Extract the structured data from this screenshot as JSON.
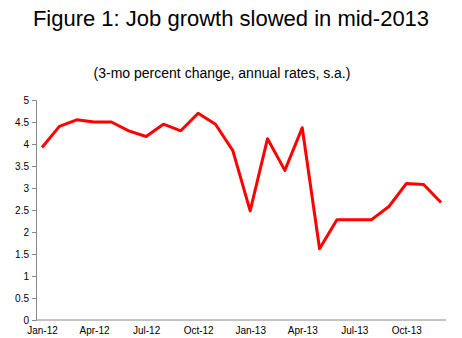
{
  "chart_data": {
    "type": "line",
    "title": "Figure 1: Job growth slowed in mid-2013",
    "subtitle": "(3-mo percent change, annual rates, s.a.)",
    "categories": [
      "Jan-12",
      null,
      null,
      "Apr-12",
      null,
      null,
      "Jul-12",
      null,
      null,
      "Oct-12",
      null,
      null,
      "Jan-13",
      null,
      null,
      "Apr-13",
      null,
      null,
      "Jul-13",
      null,
      null,
      "Oct-13",
      null,
      null
    ],
    "series": [
      {
        "name": "Job growth",
        "color": "#ff0000",
        "values": [
          3.92,
          4.4,
          4.55,
          4.5,
          4.5,
          4.3,
          4.17,
          4.45,
          4.3,
          4.7,
          4.45,
          3.85,
          2.48,
          4.12,
          3.4,
          4.37,
          1.62,
          2.28,
          2.28,
          2.28,
          2.58,
          3.1,
          3.08,
          2.67
        ]
      }
    ],
    "ylim": [
      0,
      5
    ],
    "yticks": [
      0,
      0.5,
      1,
      1.5,
      2,
      2.5,
      3,
      3.5,
      4,
      4.5,
      5
    ],
    "grid": false
  }
}
